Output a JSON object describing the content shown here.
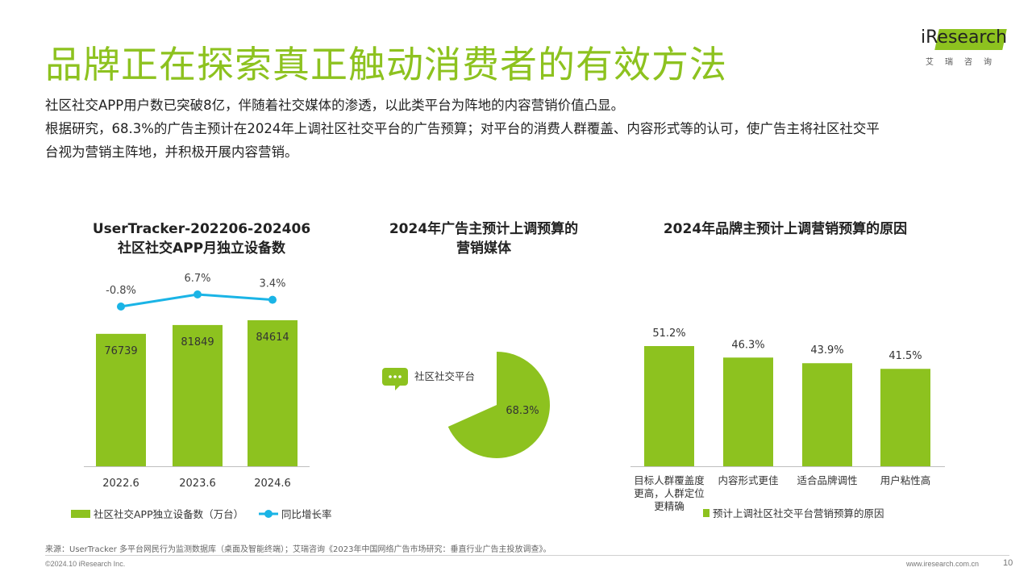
{
  "header": {
    "title": "品牌正在探索真正触动消费者的有效方法",
    "logo_text": "iResearch",
    "logo_sub": "艾瑞咨询"
  },
  "description": [
    "社区社交APP用户数已突破8亿，伴随着社交媒体的渗透，以此类平台为阵地的内容营销价值凸显。",
    "根据研究，68.3%的广告主预计在2024年上调社区社交平台的广告预算；对平台的消费人群覆盖、内容形式等的认可，使广告主将社区社交平",
    "台视为营销主阵地，并积极开展内容营销。"
  ],
  "colors": {
    "accent": "#8dc21f",
    "line": "#1ab4e6"
  },
  "chart_data": [
    {
      "type": "bar",
      "title_lines": [
        "UserTracker-202206-202406",
        "社区社交APP月独立设备数"
      ],
      "categories": [
        "2022.6",
        "2023.6",
        "2024.6"
      ],
      "series": [
        {
          "name": "社区社交APP独立设备数（万台）",
          "type": "bar",
          "values": [
            76739,
            81849,
            84614
          ],
          "labels": [
            "76739",
            "81849",
            "84614"
          ]
        },
        {
          "name": "同比增长率",
          "type": "line",
          "values": [
            -0.8,
            6.7,
            3.4
          ],
          "labels": [
            "-0.8%",
            "6.7%",
            "3.4%"
          ]
        }
      ]
    },
    {
      "type": "pie",
      "title_lines": [
        "2024年广告主预计上调预算的",
        "营销媒体"
      ],
      "slices": [
        {
          "name": "社区社交平台",
          "value": 68.3,
          "label": "68.3%"
        }
      ],
      "icon": "chat-bubble-icon"
    },
    {
      "type": "bar",
      "title_lines": [
        "2024年品牌主预计上调营销预算的原因"
      ],
      "categories": [
        [
          "目标人群覆盖度",
          "更高，人群定位",
          "更精确"
        ],
        [
          "内容形式更佳"
        ],
        [
          "适合品牌调性"
        ],
        [
          "用户粘性高"
        ]
      ],
      "series": [
        {
          "name": "预计上调社区社交平台营销预算的原因",
          "values": [
            51.2,
            46.3,
            43.9,
            41.5
          ],
          "labels": [
            "51.2%",
            "46.3%",
            "43.9%",
            "41.5%"
          ]
        }
      ]
    }
  ],
  "footer": {
    "source": "来源：UserTracker 多平台网民行为监测数据库（桌面及智能终端）；艾瑞咨询《2023年中国网络广告市场研究：垂直行业广告主投放调查》。",
    "copyright": "©2024.10 iResearch Inc.",
    "website": "www.iresearch.com.cn",
    "page": "10"
  }
}
